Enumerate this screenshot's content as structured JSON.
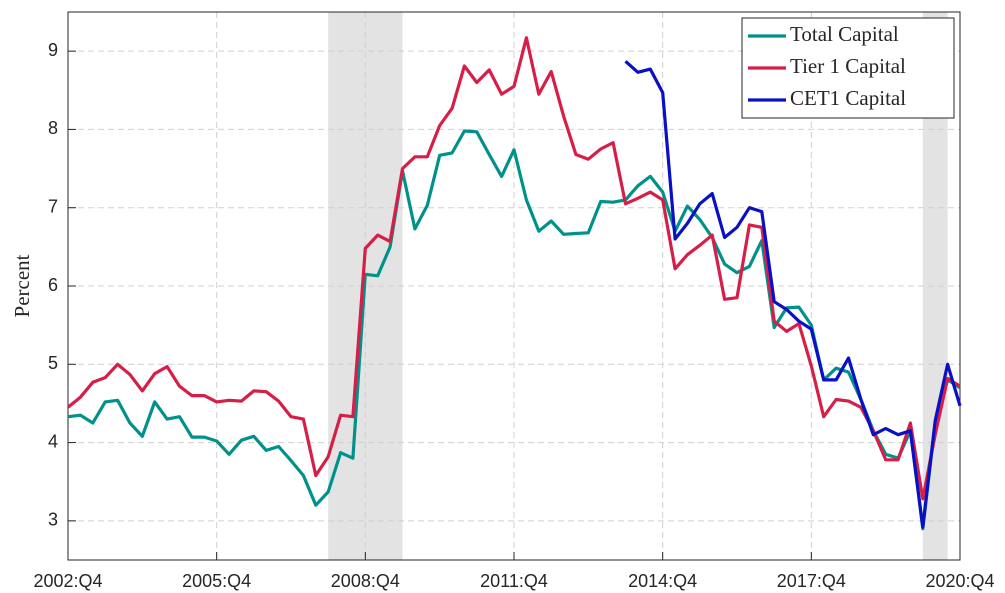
{
  "chart_data": {
    "type": "line",
    "ylabel": "Percent",
    "categories": [
      "2002:Q4",
      null,
      null,
      null,
      null,
      null,
      null,
      null,
      null,
      null,
      null,
      null,
      "2005:Q4",
      null,
      null,
      null,
      null,
      null,
      null,
      null,
      null,
      null,
      null,
      null,
      "2008:Q4",
      null,
      null,
      null,
      null,
      null,
      null,
      null,
      null,
      null,
      null,
      null,
      "2011:Q4",
      null,
      null,
      null,
      null,
      null,
      null,
      null,
      null,
      null,
      null,
      null,
      "2014:Q4",
      null,
      null,
      null,
      null,
      null,
      null,
      null,
      null,
      null,
      null,
      null,
      "2017:Q4",
      null,
      null,
      null,
      null,
      null,
      null,
      null,
      null,
      null,
      null,
      null,
      "2020:Q4"
    ],
    "series": [
      {
        "name": "Total Capital",
        "color": "#00918a",
        "values": [
          4.33,
          4.35,
          4.25,
          4.52,
          4.54,
          4.25,
          4.08,
          4.52,
          4.3,
          4.33,
          4.07,
          4.07,
          4.02,
          3.85,
          4.03,
          4.08,
          3.9,
          3.95,
          3.77,
          3.58,
          3.2,
          3.37,
          3.87,
          3.8,
          6.15,
          6.13,
          6.5,
          7.47,
          6.73,
          7.03,
          7.67,
          7.7,
          7.98,
          7.97,
          7.68,
          7.4,
          7.74,
          7.1,
          6.7,
          6.83,
          6.66,
          6.67,
          6.68,
          7.08,
          7.07,
          7.1,
          7.28,
          7.4,
          7.2,
          6.7,
          7.02,
          6.85,
          6.62,
          6.28,
          6.17,
          6.25,
          6.58,
          5.47,
          5.72,
          5.73,
          5.5,
          4.8,
          4.95,
          4.9,
          4.55,
          4.15,
          3.85,
          3.8,
          4.15,
          2.9,
          4.25,
          4.8,
          4.7
        ]
      },
      {
        "name": "Tier 1 Capital",
        "color": "#d61f48",
        "values": [
          4.45,
          4.58,
          4.77,
          4.83,
          5.0,
          4.87,
          4.66,
          4.88,
          4.97,
          4.72,
          4.6,
          4.6,
          4.52,
          4.54,
          4.53,
          4.66,
          4.65,
          4.53,
          4.33,
          4.3,
          3.58,
          3.82,
          4.35,
          4.33,
          6.48,
          6.65,
          6.57,
          7.5,
          7.65,
          7.65,
          8.05,
          8.27,
          8.81,
          8.6,
          8.76,
          8.45,
          8.55,
          9.17,
          8.45,
          8.74,
          8.17,
          7.68,
          7.62,
          7.75,
          7.83,
          7.05,
          7.12,
          7.2,
          7.1,
          6.22,
          6.4,
          6.52,
          6.65,
          5.83,
          5.85,
          6.78,
          6.75,
          5.55,
          5.42,
          5.52,
          4.98,
          4.33,
          4.55,
          4.53,
          4.45,
          4.15,
          3.78,
          3.78,
          4.25,
          3.28,
          4.1,
          4.82,
          4.72
        ]
      },
      {
        "name": "CET1 Capital",
        "color": "#0a10c4",
        "values": [
          null,
          null,
          null,
          null,
          null,
          null,
          null,
          null,
          null,
          null,
          null,
          null,
          null,
          null,
          null,
          null,
          null,
          null,
          null,
          null,
          null,
          null,
          null,
          null,
          null,
          null,
          null,
          null,
          null,
          null,
          null,
          null,
          null,
          null,
          null,
          null,
          null,
          null,
          null,
          null,
          null,
          null,
          null,
          null,
          null,
          8.87,
          8.73,
          8.77,
          8.47,
          6.6,
          6.8,
          7.05,
          7.18,
          6.62,
          6.75,
          7.0,
          6.95,
          5.8,
          5.7,
          5.55,
          5.45,
          4.8,
          4.8,
          5.08,
          4.55,
          4.1,
          4.18,
          4.1,
          4.15,
          2.92,
          4.28,
          5.0,
          4.47
        ]
      }
    ],
    "shaded_regions": [
      [
        21,
        27
      ],
      [
        69,
        71
      ]
    ],
    "ylim": [
      2.5,
      9.5
    ],
    "yticks": [
      3,
      4,
      5,
      6,
      7,
      8,
      9
    ],
    "grid": true,
    "legend": "upper right"
  }
}
